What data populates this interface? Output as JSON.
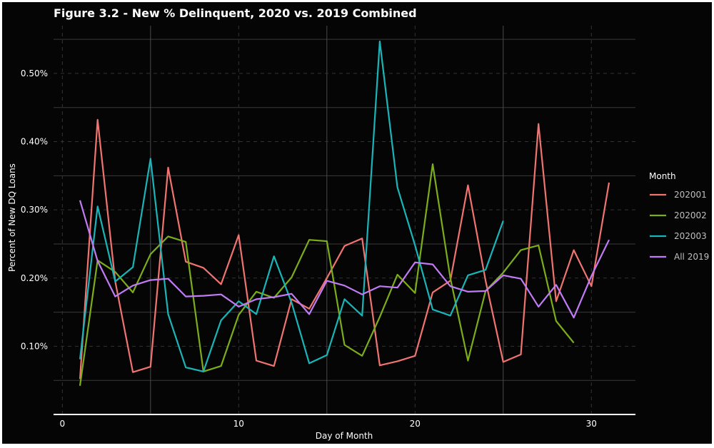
{
  "chart_data": {
    "type": "line",
    "title": "Figure 3.2 - New % Delinquent, 2020 vs. 2019 Combined",
    "xlabel": "Day of Month",
    "ylabel": "Percent of New DQ Loans",
    "xlim": [
      -0.5,
      32.5
    ],
    "ylim": [
      0.0,
      0.57
    ],
    "x_ticks": [
      0,
      10,
      20,
      30
    ],
    "x_tick_labels": [
      "0",
      "10",
      "20",
      "30"
    ],
    "y_ticks": [
      0.1,
      0.2,
      0.3,
      0.4,
      0.5
    ],
    "y_tick_labels": [
      "0.10%",
      "0.20%",
      "0.30%",
      "0.40%",
      "0.50%"
    ],
    "grid": true,
    "legend": {
      "title": "Month",
      "placement": "right"
    },
    "series": [
      {
        "name": "202001",
        "color": "#f07470",
        "x": [
          1,
          2,
          3,
          4,
          5,
          6,
          7,
          8,
          9,
          10,
          11,
          12,
          13,
          14,
          15,
          16,
          17,
          18,
          19,
          20,
          21,
          22,
          23,
          24,
          25,
          26,
          27,
          28,
          29,
          30,
          31
        ],
        "y": [
          0.052,
          0.432,
          0.195,
          0.062,
          0.07,
          0.362,
          0.224,
          0.215,
          0.191,
          0.263,
          0.079,
          0.071,
          0.169,
          0.155,
          0.2,
          0.247,
          0.258,
          0.072,
          0.078,
          0.086,
          0.179,
          0.196,
          0.336,
          0.196,
          0.077,
          0.088,
          0.426,
          0.166,
          0.241,
          0.188,
          0.34
        ]
      },
      {
        "name": "202002",
        "color": "#7cad1a",
        "x": [
          1,
          2,
          3,
          4,
          5,
          6,
          7,
          8,
          9,
          10,
          11,
          12,
          13,
          14,
          15,
          16,
          17,
          18,
          19,
          20,
          21,
          22,
          23,
          24,
          25,
          26,
          27,
          28,
          29
        ],
        "y": [
          0.042,
          0.226,
          0.209,
          0.179,
          0.235,
          0.261,
          0.253,
          0.063,
          0.071,
          0.146,
          0.18,
          0.171,
          0.201,
          0.256,
          0.254,
          0.102,
          0.086,
          0.143,
          0.205,
          0.178,
          0.367,
          0.2,
          0.079,
          0.181,
          0.208,
          0.241,
          0.248,
          0.137,
          0.105
        ]
      },
      {
        "name": "202003",
        "color": "#19b5b8",
        "x": [
          1,
          2,
          3,
          4,
          5,
          6,
          7,
          8,
          9,
          10,
          11,
          12,
          13,
          14,
          15,
          16,
          17,
          18,
          19,
          20,
          21,
          22,
          23,
          24,
          25
        ],
        "y": [
          0.081,
          0.305,
          0.195,
          0.216,
          0.375,
          0.147,
          0.069,
          0.063,
          0.138,
          0.166,
          0.147,
          0.232,
          0.164,
          0.075,
          0.087,
          0.169,
          0.145,
          0.547,
          0.333,
          0.248,
          0.154,
          0.145,
          0.204,
          0.212,
          0.284
        ]
      },
      {
        "name": "All 2019",
        "color": "#c17cf5",
        "x": [
          1,
          2,
          3,
          4,
          5,
          6,
          7,
          8,
          9,
          10,
          11,
          12,
          13,
          14,
          15,
          16,
          17,
          18,
          19,
          20,
          21,
          22,
          23,
          24,
          25,
          26,
          27,
          28,
          29,
          30,
          31
        ],
        "y": [
          0.314,
          0.225,
          0.173,
          0.189,
          0.197,
          0.199,
          0.173,
          0.174,
          0.176,
          0.158,
          0.169,
          0.172,
          0.177,
          0.147,
          0.196,
          0.189,
          0.176,
          0.188,
          0.186,
          0.223,
          0.22,
          0.188,
          0.18,
          0.181,
          0.204,
          0.199,
          0.158,
          0.19,
          0.142,
          0.203,
          0.256
        ]
      }
    ]
  }
}
